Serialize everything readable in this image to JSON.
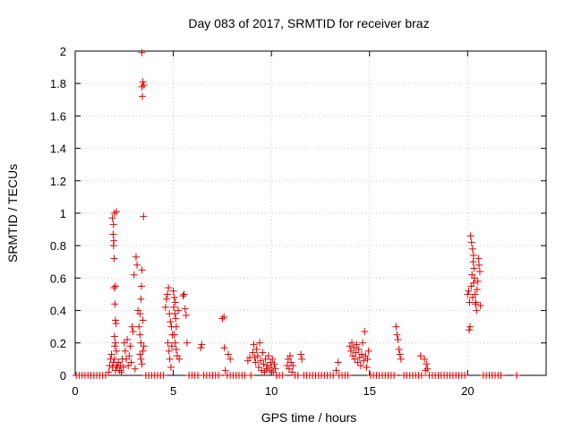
{
  "chart_data": {
    "type": "scatter",
    "title": "Day 083 of 2017, SRMTID for receiver braz",
    "xlabel": "GPS time / hours",
    "ylabel": "SRMTID / TECUs",
    "xlim": [
      0,
      24
    ],
    "ylim": [
      0,
      2
    ],
    "xticks": [
      0,
      5,
      10,
      15,
      20
    ],
    "xtick_labels": [
      "0",
      "5",
      "10",
      "15",
      "20"
    ],
    "yticks": [
      0,
      0.2,
      0.4,
      0.6,
      0.8,
      1,
      1.2,
      1.4,
      1.6,
      1.8,
      2
    ],
    "ytick_labels": [
      "0",
      "0.2",
      "0.4",
      "0.6",
      "0.8",
      "1",
      "1.2",
      "1.4",
      "1.6",
      "1.8",
      "2"
    ],
    "grid": true,
    "marker": "+",
    "color": "#e00000",
    "series": [
      {
        "name": "SRMTID",
        "points": [
          [
            0.05,
            0
          ],
          [
            0.2,
            0
          ],
          [
            0.35,
            0
          ],
          [
            0.5,
            0
          ],
          [
            0.65,
            0
          ],
          [
            0.8,
            0
          ],
          [
            0.95,
            0
          ],
          [
            1.1,
            0
          ],
          [
            1.25,
            0
          ],
          [
            1.4,
            0
          ],
          [
            1.55,
            0
          ],
          [
            1.7,
            0.02
          ],
          [
            1.75,
            0.06
          ],
          [
            1.8,
            0.1
          ],
          [
            1.85,
            0.13
          ],
          [
            1.9,
            0.05
          ],
          [
            1.95,
            0.08
          ],
          [
            2.0,
            0.1
          ],
          [
            2.05,
            0.03
          ],
          [
            2.1,
            0.06
          ],
          [
            1.9,
            0.97
          ],
          [
            1.95,
            0.93
          ],
          [
            1.93,
            0.87
          ],
          [
            1.97,
            0.83
          ],
          [
            1.95,
            0.8
          ],
          [
            1.98,
            0.72
          ],
          [
            2.0,
            1.0
          ],
          [
            2.1,
            1.01
          ],
          [
            1.98,
            0.54
          ],
          [
            2.05,
            0.55
          ],
          [
            2.02,
            0.44
          ],
          [
            2.05,
            0.34
          ],
          [
            2.08,
            0.32
          ],
          [
            2.0,
            0.24
          ],
          [
            2.02,
            0.18
          ],
          [
            2.05,
            0.2
          ],
          [
            2.1,
            0.15
          ],
          [
            2.15,
            0.05
          ],
          [
            2.2,
            0.08
          ],
          [
            2.25,
            0.03
          ],
          [
            2.3,
            0.06
          ],
          [
            2.35,
            0.02
          ],
          [
            2.4,
            0.1
          ],
          [
            2.45,
            0.05
          ],
          [
            2.5,
            0.2
          ],
          [
            2.55,
            0.15
          ],
          [
            2.6,
            0.1
          ],
          [
            2.65,
            0.22
          ],
          [
            2.7,
            0.06
          ],
          [
            2.75,
            0.12
          ],
          [
            2.8,
            0.18
          ],
          [
            2.85,
            0.08
          ],
          [
            2.9,
            0.3
          ],
          [
            2.95,
            0.27
          ],
          [
            3.0,
            0.62
          ],
          [
            3.05,
            0.04
          ],
          [
            3.1,
            0.73
          ],
          [
            3.15,
            0.68
          ],
          [
            3.2,
            0.4
          ],
          [
            3.25,
            0.3
          ],
          [
            3.3,
            0.38
          ],
          [
            3.35,
            0.2
          ],
          [
            3.3,
            0.25
          ],
          [
            3.38,
            0.55
          ],
          [
            3.4,
            0.65
          ],
          [
            3.35,
            0.47
          ],
          [
            3.45,
            0.34
          ],
          [
            3.3,
            0.13
          ],
          [
            3.35,
            0.1
          ],
          [
            3.4,
            0.07
          ],
          [
            3.45,
            0.15
          ],
          [
            3.5,
            0.18
          ],
          [
            3.4,
            1.99
          ],
          [
            3.45,
            1.81
          ],
          [
            3.4,
            1.78
          ],
          [
            3.5,
            1.79
          ],
          [
            3.42,
            1.72
          ],
          [
            3.48,
            0.98
          ],
          [
            3.6,
            0
          ],
          [
            3.75,
            0
          ],
          [
            3.9,
            0
          ],
          [
            4.05,
            0
          ],
          [
            4.2,
            0
          ],
          [
            4.35,
            0
          ],
          [
            4.5,
            0
          ],
          [
            4.6,
            0.42
          ],
          [
            4.65,
            0.47
          ],
          [
            4.7,
            0.5
          ],
          [
            4.75,
            0.54
          ],
          [
            4.8,
            0.38
          ],
          [
            4.85,
            0.33
          ],
          [
            4.9,
            0.3
          ],
          [
            4.95,
            0.25
          ],
          [
            4.72,
            0.2
          ],
          [
            4.78,
            0.15
          ],
          [
            4.82,
            0.1
          ],
          [
            4.88,
            0.05
          ],
          [
            4.92,
            0.18
          ],
          [
            5.0,
            0.52
          ],
          [
            5.05,
            0.48
          ],
          [
            5.1,
            0.45
          ],
          [
            5.02,
            0.42
          ],
          [
            5.08,
            0.38
          ],
          [
            5.12,
            0.35
          ],
          [
            5.15,
            0.3
          ],
          [
            5.05,
            0.25
          ],
          [
            5.1,
            0.2
          ],
          [
            5.15,
            0.16
          ],
          [
            5.2,
            0.12
          ],
          [
            5.25,
            0.4
          ],
          [
            5.3,
            0.1
          ],
          [
            5.5,
            0.49
          ],
          [
            5.55,
            0.5
          ],
          [
            5.6,
            0.41
          ],
          [
            5.65,
            0.37
          ],
          [
            5.7,
            0.2
          ],
          [
            5.8,
            0
          ],
          [
            5.95,
            0
          ],
          [
            6.1,
            0
          ],
          [
            6.25,
            0
          ],
          [
            6.4,
            0.17
          ],
          [
            6.45,
            0.19
          ],
          [
            6.55,
            0
          ],
          [
            6.7,
            0
          ],
          [
            6.85,
            0
          ],
          [
            7.0,
            0
          ],
          [
            7.15,
            0
          ],
          [
            7.3,
            0
          ],
          [
            7.5,
            0.35
          ],
          [
            7.58,
            0.36
          ],
          [
            7.6,
            0.17
          ],
          [
            7.65,
            0.03
          ],
          [
            7.8,
            0.13
          ],
          [
            7.9,
            0.1
          ],
          [
            7.75,
            0
          ],
          [
            7.9,
            0
          ],
          [
            8.05,
            0
          ],
          [
            8.2,
            0
          ],
          [
            8.35,
            0
          ],
          [
            8.5,
            0
          ],
          [
            8.65,
            0
          ],
          [
            8.8,
            0.09
          ],
          [
            8.9,
            0.11
          ],
          [
            8.95,
            0
          ],
          [
            9.05,
            0.14
          ],
          [
            9.1,
            0.19
          ],
          [
            9.15,
            0.11
          ],
          [
            9.2,
            0.08
          ],
          [
            9.25,
            0.16
          ],
          [
            9.3,
            0.12
          ],
          [
            9.35,
            0.05
          ],
          [
            9.4,
            0.2
          ],
          [
            9.45,
            0.09
          ],
          [
            9.5,
            0.03
          ],
          [
            9.55,
            0.14
          ],
          [
            9.6,
            0.07
          ],
          [
            9.65,
            0.02
          ],
          [
            9.7,
            0.1
          ],
          [
            9.75,
            0.04
          ],
          [
            9.8,
            0.06
          ],
          [
            9.85,
            0.12
          ],
          [
            9.9,
            0.03
          ],
          [
            9.95,
            0.08
          ],
          [
            10.0,
            0.05
          ],
          [
            10.05,
            0.1
          ],
          [
            10.1,
            0.02
          ],
          [
            10.15,
            0.07
          ],
          [
            10.2,
            0.04
          ],
          [
            10.25,
            0
          ],
          [
            10.4,
            0
          ],
          [
            10.55,
            0
          ],
          [
            10.8,
            0.06
          ],
          [
            10.85,
            0.1
          ],
          [
            10.9,
            0.04
          ],
          [
            10.95,
            0.12
          ],
          [
            11.0,
            0.08
          ],
          [
            11.05,
            0.02
          ],
          [
            11.1,
            0.06
          ],
          [
            11.2,
            0
          ],
          [
            11.35,
            0
          ],
          [
            11.5,
            0.13
          ],
          [
            11.55,
            0.1
          ],
          [
            11.65,
            0
          ],
          [
            11.8,
            0
          ],
          [
            11.95,
            0
          ],
          [
            12.1,
            0
          ],
          [
            12.25,
            0
          ],
          [
            12.4,
            0
          ],
          [
            12.55,
            0
          ],
          [
            12.7,
            0
          ],
          [
            12.85,
            0
          ],
          [
            13.0,
            0
          ],
          [
            13.15,
            0
          ],
          [
            13.3,
            0.03
          ],
          [
            13.4,
            0.08
          ],
          [
            13.45,
            0
          ],
          [
            13.6,
            0
          ],
          [
            13.75,
            0
          ],
          [
            13.9,
            0
          ],
          [
            14.0,
            0.18
          ],
          [
            14.05,
            0.15
          ],
          [
            14.1,
            0.2
          ],
          [
            14.15,
            0.12
          ],
          [
            14.2,
            0.17
          ],
          [
            14.25,
            0.1
          ],
          [
            14.3,
            0.14
          ],
          [
            14.35,
            0.19
          ],
          [
            14.4,
            0.08
          ],
          [
            14.45,
            0.16
          ],
          [
            14.5,
            0.11
          ],
          [
            14.55,
            0.06
          ],
          [
            14.6,
            0.13
          ],
          [
            14.65,
            0.2
          ],
          [
            14.7,
            0.09
          ],
          [
            14.75,
            0.27
          ],
          [
            14.8,
            0.12
          ],
          [
            14.85,
            0.05
          ],
          [
            14.9,
            0.1
          ],
          [
            14.95,
            0.15
          ],
          [
            15.05,
            0
          ],
          [
            15.2,
            0
          ],
          [
            15.35,
            0
          ],
          [
            15.5,
            0
          ],
          [
            15.65,
            0
          ],
          [
            15.8,
            0
          ],
          [
            15.95,
            0
          ],
          [
            16.1,
            0
          ],
          [
            16.25,
            0
          ],
          [
            16.35,
            0.3
          ],
          [
            16.4,
            0.25
          ],
          [
            16.45,
            0.22
          ],
          [
            16.5,
            0.16
          ],
          [
            16.55,
            0.13
          ],
          [
            16.6,
            0.1
          ],
          [
            16.75,
            0
          ],
          [
            16.9,
            0
          ],
          [
            17.05,
            0
          ],
          [
            17.2,
            0
          ],
          [
            17.35,
            0
          ],
          [
            17.5,
            0
          ],
          [
            17.6,
            0.12
          ],
          [
            17.65,
            0
          ],
          [
            17.8,
            0.1
          ],
          [
            17.85,
            0.03
          ],
          [
            17.9,
            0.07
          ],
          [
            17.95,
            0.04
          ],
          [
            18.05,
            0
          ],
          [
            18.2,
            0
          ],
          [
            18.35,
            0
          ],
          [
            18.5,
            0
          ],
          [
            18.65,
            0
          ],
          [
            18.8,
            0
          ],
          [
            18.95,
            0
          ],
          [
            19.1,
            0
          ],
          [
            19.25,
            0
          ],
          [
            19.4,
            0
          ],
          [
            19.55,
            0
          ],
          [
            19.7,
            0
          ],
          [
            19.85,
            0
          ],
          [
            20.0,
            0.5
          ],
          [
            20.05,
            0.52
          ],
          [
            20.1,
            0.45
          ],
          [
            20.15,
            0.86
          ],
          [
            20.2,
            0.82
          ],
          [
            20.25,
            0.78
          ],
          [
            20.3,
            0.74
          ],
          [
            20.08,
            0.28
          ],
          [
            20.12,
            0.3
          ],
          [
            20.18,
            0.55
          ],
          [
            20.22,
            0.62
          ],
          [
            20.28,
            0.7
          ],
          [
            20.32,
            0.66
          ],
          [
            20.35,
            0.6
          ],
          [
            20.38,
            0.5
          ],
          [
            20.42,
            0.45
          ],
          [
            20.45,
            0.4
          ],
          [
            20.48,
            0.53
          ],
          [
            20.52,
            0.58
          ],
          [
            20.55,
            0.72
          ],
          [
            20.58,
            0.68
          ],
          [
            20.62,
            0.64
          ],
          [
            20.65,
            0.43
          ],
          [
            20.25,
            0.48
          ],
          [
            20.3,
            0.57
          ],
          [
            20.4,
            0.44
          ],
          [
            20.8,
            0
          ],
          [
            20.95,
            0
          ],
          [
            21.1,
            0
          ],
          [
            21.25,
            0
          ],
          [
            21.4,
            0
          ],
          [
            21.55,
            0
          ],
          [
            21.7,
            0
          ],
          [
            22.5,
            0
          ]
        ]
      }
    ]
  }
}
